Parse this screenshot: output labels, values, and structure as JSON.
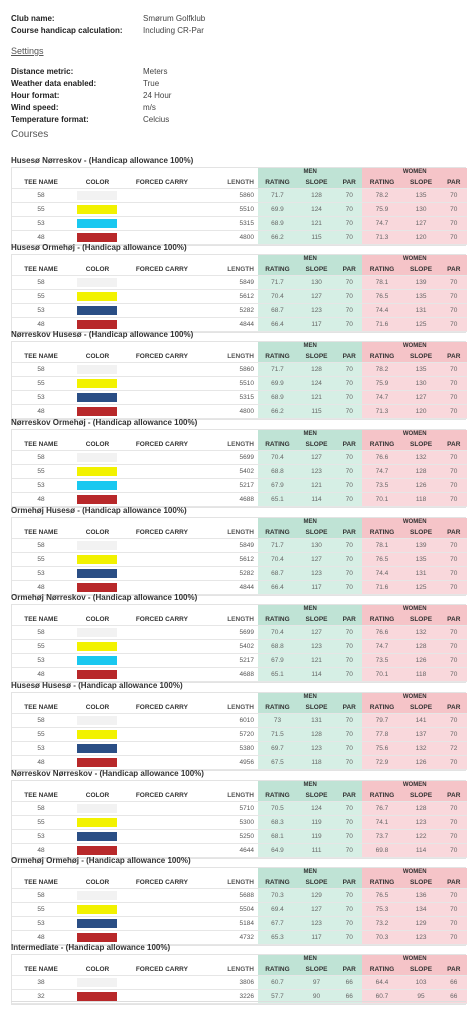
{
  "info": {
    "club_label": "Club name:",
    "club_value": "Smørum Golfklub",
    "calc_label": "Course handicap calculation:",
    "calc_value": "Including CR-Par",
    "settings_link": "Settings",
    "distance_label": "Distance metric:",
    "distance_value": "Meters",
    "weather_label": "Weather data enabled:",
    "weather_value": "True",
    "hour_label": "Hour format:",
    "hour_value": "24 Hour",
    "wind_label": "Wind speed:",
    "wind_value": "m/s",
    "temp_label": "Temperature format:",
    "temp_value": "Celcius",
    "courses_heading": "Courses"
  },
  "headers": {
    "men": "MEN",
    "women": "WOMEN",
    "tee_name": "TEE NAME",
    "color": "COLOR",
    "forced_carry": "FORCED CARRY",
    "length": "LENGTH",
    "rating": "RATING",
    "slope": "SLOPE",
    "par": "PAR"
  },
  "colors": {
    "white": "#f2f2f2",
    "yellow": "#f2f200",
    "cyan": "#19c8f0",
    "blue": "#2a4e85",
    "red": "#b8282a"
  },
  "courses": [
    {
      "title": "Husesø Nørreskov - (Handicap allowance 100%)",
      "tees": [
        {
          "name": "58",
          "color": "white",
          "length": "5860",
          "mr": "71.7",
          "ms": "128",
          "mp": "70",
          "wr": "78.2",
          "ws": "135",
          "wp": "70"
        },
        {
          "name": "55",
          "color": "yellow",
          "length": "5510",
          "mr": "69.9",
          "ms": "124",
          "mp": "70",
          "wr": "75.9",
          "ws": "130",
          "wp": "70"
        },
        {
          "name": "53",
          "color": "cyan",
          "length": "5315",
          "mr": "68.9",
          "ms": "121",
          "mp": "70",
          "wr": "74.7",
          "ws": "127",
          "wp": "70"
        },
        {
          "name": "48",
          "color": "red",
          "length": "4800",
          "mr": "66.2",
          "ms": "115",
          "mp": "70",
          "wr": "71.3",
          "ws": "120",
          "wp": "70"
        }
      ]
    },
    {
      "title": "Husesø Ormehøj - (Handicap allowance 100%)",
      "tees": [
        {
          "name": "58",
          "color": "white",
          "length": "5849",
          "mr": "71.7",
          "ms": "130",
          "mp": "70",
          "wr": "78.1",
          "ws": "139",
          "wp": "70"
        },
        {
          "name": "55",
          "color": "yellow",
          "length": "5612",
          "mr": "70.4",
          "ms": "127",
          "mp": "70",
          "wr": "76.5",
          "ws": "135",
          "wp": "70"
        },
        {
          "name": "53",
          "color": "blue",
          "length": "5282",
          "mr": "68.7",
          "ms": "123",
          "mp": "70",
          "wr": "74.4",
          "ws": "131",
          "wp": "70"
        },
        {
          "name": "48",
          "color": "red",
          "length": "4844",
          "mr": "66.4",
          "ms": "117",
          "mp": "70",
          "wr": "71.6",
          "ws": "125",
          "wp": "70"
        }
      ]
    },
    {
      "title": "Nørreskov Husesø - (Handicap allowance 100%)",
      "tees": [
        {
          "name": "58",
          "color": "white",
          "length": "5860",
          "mr": "71.7",
          "ms": "128",
          "mp": "70",
          "wr": "78.2",
          "ws": "135",
          "wp": "70"
        },
        {
          "name": "55",
          "color": "yellow",
          "length": "5510",
          "mr": "69.9",
          "ms": "124",
          "mp": "70",
          "wr": "75.9",
          "ws": "130",
          "wp": "70"
        },
        {
          "name": "53",
          "color": "blue",
          "length": "5315",
          "mr": "68.9",
          "ms": "121",
          "mp": "70",
          "wr": "74.7",
          "ws": "127",
          "wp": "70"
        },
        {
          "name": "48",
          "color": "red",
          "length": "4800",
          "mr": "66.2",
          "ms": "115",
          "mp": "70",
          "wr": "71.3",
          "ws": "120",
          "wp": "70"
        }
      ]
    },
    {
      "title": "Nørreskov Ormehøj - (Handicap allowance 100%)",
      "tees": [
        {
          "name": "58",
          "color": "white",
          "length": "5699",
          "mr": "70.4",
          "ms": "127",
          "mp": "70",
          "wr": "76.6",
          "ws": "132",
          "wp": "70"
        },
        {
          "name": "55",
          "color": "yellow",
          "length": "5402",
          "mr": "68.8",
          "ms": "123",
          "mp": "70",
          "wr": "74.7",
          "ws": "128",
          "wp": "70"
        },
        {
          "name": "53",
          "color": "cyan",
          "length": "5217",
          "mr": "67.9",
          "ms": "121",
          "mp": "70",
          "wr": "73.5",
          "ws": "126",
          "wp": "70"
        },
        {
          "name": "48",
          "color": "red",
          "length": "4688",
          "mr": "65.1",
          "ms": "114",
          "mp": "70",
          "wr": "70.1",
          "ws": "118",
          "wp": "70"
        }
      ]
    },
    {
      "title": "Ormehøj Husesø - (Handicap allowance 100%)",
      "tees": [
        {
          "name": "58",
          "color": "white",
          "length": "5849",
          "mr": "71.7",
          "ms": "130",
          "mp": "70",
          "wr": "78.1",
          "ws": "139",
          "wp": "70"
        },
        {
          "name": "55",
          "color": "yellow",
          "length": "5612",
          "mr": "70.4",
          "ms": "127",
          "mp": "70",
          "wr": "76.5",
          "ws": "135",
          "wp": "70"
        },
        {
          "name": "53",
          "color": "blue",
          "length": "5282",
          "mr": "68.7",
          "ms": "123",
          "mp": "70",
          "wr": "74.4",
          "ws": "131",
          "wp": "70"
        },
        {
          "name": "48",
          "color": "red",
          "length": "4844",
          "mr": "66.4",
          "ms": "117",
          "mp": "70",
          "wr": "71.6",
          "ws": "125",
          "wp": "70"
        }
      ]
    },
    {
      "title": "Ormehøj Nørreskov - (Handicap allowance 100%)",
      "tees": [
        {
          "name": "58",
          "color": "white",
          "length": "5699",
          "mr": "70.4",
          "ms": "127",
          "mp": "70",
          "wr": "76.6",
          "ws": "132",
          "wp": "70"
        },
        {
          "name": "55",
          "color": "yellow",
          "length": "5402",
          "mr": "68.8",
          "ms": "123",
          "mp": "70",
          "wr": "74.7",
          "ws": "128",
          "wp": "70"
        },
        {
          "name": "53",
          "color": "cyan",
          "length": "5217",
          "mr": "67.9",
          "ms": "121",
          "mp": "70",
          "wr": "73.5",
          "ws": "126",
          "wp": "70"
        },
        {
          "name": "48",
          "color": "red",
          "length": "4688",
          "mr": "65.1",
          "ms": "114",
          "mp": "70",
          "wr": "70.1",
          "ws": "118",
          "wp": "70"
        }
      ]
    },
    {
      "title": "Husesø Husesø - (Handicap allowance 100%)",
      "tees": [
        {
          "name": "58",
          "color": "white",
          "length": "6010",
          "mr": "73",
          "ms": "131",
          "mp": "70",
          "wr": "79.7",
          "ws": "141",
          "wp": "70"
        },
        {
          "name": "55",
          "color": "yellow",
          "length": "5720",
          "mr": "71.5",
          "ms": "128",
          "mp": "70",
          "wr": "77.8",
          "ws": "137",
          "wp": "70"
        },
        {
          "name": "53",
          "color": "blue",
          "length": "5380",
          "mr": "69.7",
          "ms": "123",
          "mp": "70",
          "wr": "75.6",
          "ws": "132",
          "wp": "72"
        },
        {
          "name": "48",
          "color": "red",
          "length": "4956",
          "mr": "67.5",
          "ms": "118",
          "mp": "70",
          "wr": "72.9",
          "ws": "126",
          "wp": "70"
        }
      ]
    },
    {
      "title": "Nørreskov Nørreskov - (Handicap allowance 100%)",
      "tees": [
        {
          "name": "58",
          "color": "white",
          "length": "5710",
          "mr": "70.5",
          "ms": "124",
          "mp": "70",
          "wr": "76.7",
          "ws": "128",
          "wp": "70"
        },
        {
          "name": "55",
          "color": "yellow",
          "length": "5300",
          "mr": "68.3",
          "ms": "119",
          "mp": "70",
          "wr": "74.1",
          "ws": "123",
          "wp": "70"
        },
        {
          "name": "53",
          "color": "blue",
          "length": "5250",
          "mr": "68.1",
          "ms": "119",
          "mp": "70",
          "wr": "73.7",
          "ws": "122",
          "wp": "70"
        },
        {
          "name": "48",
          "color": "red",
          "length": "4644",
          "mr": "64.9",
          "ms": "111",
          "mp": "70",
          "wr": "69.8",
          "ws": "114",
          "wp": "70"
        }
      ]
    },
    {
      "title": "Ormehøj Ormehøj - (Handicap allowance 100%)",
      "tees": [
        {
          "name": "58",
          "color": "white",
          "length": "5688",
          "mr": "70.3",
          "ms": "129",
          "mp": "70",
          "wr": "76.5",
          "ws": "136",
          "wp": "70"
        },
        {
          "name": "55",
          "color": "yellow",
          "length": "5504",
          "mr": "69.4",
          "ms": "127",
          "mp": "70",
          "wr": "75.3",
          "ws": "134",
          "wp": "70"
        },
        {
          "name": "53",
          "color": "blue",
          "length": "5184",
          "mr": "67.7",
          "ms": "123",
          "mp": "70",
          "wr": "73.2",
          "ws": "129",
          "wp": "70"
        },
        {
          "name": "48",
          "color": "red",
          "length": "4732",
          "mr": "65.3",
          "ms": "117",
          "mp": "70",
          "wr": "70.3",
          "ws": "123",
          "wp": "70"
        }
      ]
    },
    {
      "title": "Intermediate - (Handicap allowance 100%)",
      "tees": [
        {
          "name": "38",
          "color": "white",
          "length": "3806",
          "mr": "60.7",
          "ms": "97",
          "mp": "66",
          "wr": "64.4",
          "ws": "103",
          "wp": "66"
        },
        {
          "name": "32",
          "color": "red",
          "length": "3226",
          "mr": "57.7",
          "ms": "90",
          "mp": "66",
          "wr": "60.7",
          "ws": "95",
          "wp": "66"
        }
      ]
    }
  ]
}
